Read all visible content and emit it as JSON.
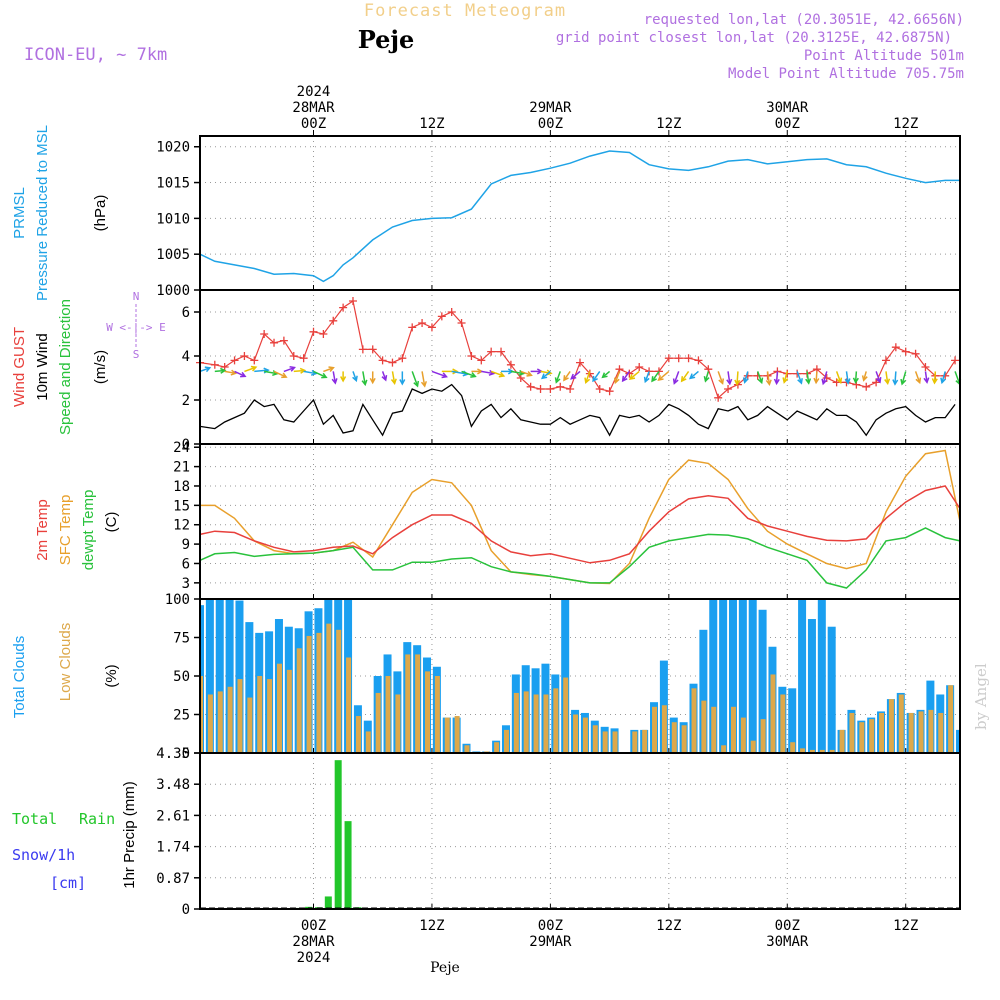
{
  "header": {
    "forecast_title": "Forecast Meteogram",
    "location": "Peje",
    "model": "ICON-EU, ~ 7km",
    "requested": "requested lon,lat (20.3051E, 42.6656N)",
    "grid_point": "grid point closest lon,lat (20.3125E, 42.6875N)",
    "point_altitude": "Point Altitude 501m",
    "model_altitude": "Model Point Altitude 705.75m",
    "footer_location": "Peje",
    "watermark": "by Angel"
  },
  "time_axis": {
    "top_labels": [
      {
        "hour": 0,
        "lines": [
          "2024",
          "28MAR",
          "00Z"
        ]
      },
      {
        "hour": 12,
        "lines": [
          "12Z"
        ]
      },
      {
        "hour": 24,
        "lines": [
          "29MAR",
          "00Z"
        ]
      },
      {
        "hour": 36,
        "lines": [
          "12Z"
        ]
      },
      {
        "hour": 48,
        "lines": [
          "30MAR",
          "00Z"
        ]
      },
      {
        "hour": 60,
        "lines": [
          "12Z"
        ]
      }
    ],
    "bottom_labels": [
      {
        "hour": 0,
        "lines": [
          "00Z",
          "28MAR",
          "2024"
        ]
      },
      {
        "hour": 12,
        "lines": [
          "12Z"
        ]
      },
      {
        "hour": 24,
        "lines": [
          "00Z",
          "29MAR"
        ]
      },
      {
        "hour": 36,
        "lines": [
          "12Z"
        ]
      },
      {
        "hour": 48,
        "lines": [
          "00Z",
          "30MAR"
        ]
      },
      {
        "hour": 60,
        "lines": [
          "12Z"
        ]
      }
    ],
    "x_range_hours": [
      -11.5,
      65.5
    ]
  },
  "panels": {
    "pressure": {
      "ylabel_lines": [
        "PRMSL",
        "Pressure Reduced to MSL"
      ],
      "unit": "(hPa)",
      "ticks": [
        "1000",
        "1005",
        "1010",
        "1015",
        "1020"
      ],
      "color": "#1fa3e6"
    },
    "wind": {
      "ylabel_gust": "Wind GUST",
      "ylabel_wind": "10m Wind",
      "ylabel_dir": "Speed and Direction",
      "unit": "(m/s)",
      "ticks": [
        "0",
        "2",
        "4",
        "6"
      ],
      "compass_n": "N",
      "compass_s": "S",
      "compass_we": "W <-|-> E",
      "gust_color": "#e8403c",
      "speed_color": "#000000",
      "arrow_colors": [
        "#1fa3e6",
        "#29c23c",
        "#e8a02c",
        "#8a2be2",
        "#e8c400"
      ]
    },
    "temperature": {
      "ylabel_2m": "2m Temp",
      "ylabel_sfc": "SFC Temp",
      "ylabel_dew": "dewpt Temp",
      "unit": "(C)",
      "ticks": [
        "3",
        "6",
        "9",
        "12",
        "15",
        "18",
        "21",
        "24"
      ],
      "t2m_color": "#e8403c",
      "sfc_color": "#e8a02c",
      "dew_color": "#29c23c"
    },
    "clouds": {
      "ylabel_total": "Total Clouds",
      "ylabel_low": "Low Clouds",
      "unit": "(%)",
      "ticks": [
        "0",
        "25",
        "50",
        "75",
        "100"
      ],
      "total_color": "#1a9ff0",
      "low_color": "#dda84a"
    },
    "precip": {
      "ylabel_total": "Total",
      "ylabel_rain": "Rain",
      "ylabel_snow": "Snow/1h",
      "ylabel_cm": "[cm]",
      "ylabel_axis": "1hr Precip (mm)",
      "ticks": [
        "0",
        "0.87",
        "1.74",
        "2.61",
        "3.48",
        "4.35"
      ],
      "rain_color": "#22c62a",
      "snow_color": "#3a3af0"
    }
  },
  "chart_data": [
    {
      "type": "line",
      "title": "PRMSL",
      "ylabel": "Pressure Reduced to MSL (hPa)",
      "ylim": [
        1000,
        1021.5
      ],
      "x_hours": [
        -11.5,
        -10,
        -8,
        -6,
        -4,
        -2,
        0,
        1,
        2,
        3,
        4,
        6,
        8,
        10,
        12,
        14,
        16,
        18,
        20,
        22,
        24,
        26,
        28,
        30,
        32,
        34,
        36,
        38,
        40,
        42,
        44,
        46,
        48,
        50,
        52,
        54,
        56,
        58,
        60,
        62,
        64,
        65.5
      ],
      "values": [
        1005,
        1004,
        1003.5,
        1003,
        1002.2,
        1002.3,
        1002,
        1001.2,
        1002,
        1003.5,
        1004.5,
        1007,
        1008.8,
        1009.7,
        1010,
        1010.1,
        1011.3,
        1014.8,
        1016,
        1016.4,
        1017,
        1017.7,
        1018.7,
        1019.4,
        1019.2,
        1017.5,
        1016.9,
        1016.7,
        1017.2,
        1018,
        1018.2,
        1017.6,
        1017.9,
        1018.2,
        1018.3,
        1017.5,
        1017.2,
        1016.3,
        1015.6,
        1015,
        1015.3,
        1015.3
      ]
    },
    {
      "type": "line",
      "title": "Wind",
      "ylabel": "(m/s)",
      "ylim": [
        0,
        7
      ],
      "x_hours": [
        -11.5,
        -10,
        -9,
        -8,
        -7,
        -6,
        -5,
        -4,
        -3,
        -2,
        -1,
        0,
        1,
        2,
        3,
        4,
        5,
        6,
        7,
        8,
        9,
        10,
        11,
        12,
        13,
        14,
        15,
        16,
        17,
        18,
        19,
        20,
        21,
        22,
        23,
        24,
        25,
        26,
        27,
        28,
        29,
        30,
        31,
        32,
        33,
        34,
        35,
        36,
        37,
        38,
        39,
        40,
        41,
        42,
        43,
        44,
        45,
        46,
        47,
        48,
        49,
        50,
        51,
        52,
        53,
        54,
        55,
        56,
        57,
        58,
        59,
        60,
        61,
        62,
        63,
        64,
        65
      ],
      "series": [
        {
          "name": "Wind GUST",
          "values": [
            3.7,
            3.6,
            3.5,
            3.8,
            4.0,
            3.8,
            5.0,
            4.6,
            4.7,
            4.0,
            3.9,
            5.1,
            5.0,
            5.6,
            6.2,
            6.5,
            4.3,
            4.3,
            3.8,
            3.7,
            3.9,
            5.3,
            5.5,
            5.3,
            5.8,
            6.0,
            5.5,
            4.0,
            3.8,
            4.2,
            4.2,
            3.6,
            3.0,
            2.6,
            2.5,
            2.5,
            2.6,
            2.5,
            3.7,
            3.2,
            2.5,
            2.4,
            3.4,
            3.2,
            3.5,
            3.3,
            3.3,
            3.9,
            3.9,
            3.9,
            3.8,
            3.4,
            2.1,
            2.5,
            2.7,
            3.1,
            3.1,
            3.1,
            3.3,
            3.2,
            3.2,
            3.2,
            3.4,
            3.0,
            2.8,
            2.8,
            2.7,
            2.6,
            2.8,
            3.8,
            4.4,
            4.2,
            4.1,
            3.5,
            3.1,
            3.1,
            3.8
          ]
        },
        {
          "name": "10m Wind",
          "values": [
            0.8,
            0.7,
            1.0,
            1.2,
            1.4,
            2.0,
            1.7,
            1.8,
            1.1,
            1.0,
            1.5,
            2.0,
            0.9,
            1.3,
            0.5,
            0.6,
            1.8,
            1.1,
            0.4,
            1.4,
            1.5,
            2.5,
            2.3,
            2.5,
            2.4,
            2.7,
            2.2,
            0.8,
            1.5,
            1.8,
            1.2,
            1.6,
            1.1,
            1.0,
            0.9,
            0.9,
            1.2,
            0.9,
            1.1,
            1.3,
            1.2,
            0.4,
            1.3,
            1.2,
            1.3,
            1.0,
            1.3,
            1.8,
            1.6,
            1.3,
            0.9,
            0.7,
            1.6,
            1.5,
            1.7,
            1.1,
            1.3,
            1.7,
            1.4,
            1.1,
            1.5,
            1.3,
            1.1,
            1.6,
            1.3,
            1.3,
            1.0,
            0.4,
            1.1,
            1.4,
            1.6,
            1.7,
            1.3,
            1.0,
            1.2,
            1.2,
            1.8
          ]
        }
      ],
      "direction_arrows_y": 3.3
    },
    {
      "type": "line",
      "title": "Temperature",
      "ylabel": "(C)",
      "ylim": [
        0.5,
        24.5
      ],
      "x_hours": [
        -11.5,
        -10,
        -8,
        -6,
        -4,
        -2,
        0,
        2,
        4,
        6,
        8,
        10,
        12,
        14,
        16,
        18,
        20,
        22,
        24,
        26,
        28,
        30,
        32,
        34,
        36,
        38,
        40,
        42,
        44,
        46,
        48,
        50,
        52,
        54,
        56,
        58,
        60,
        62,
        64,
        65.5
      ],
      "series": [
        {
          "name": "2m Temp",
          "values": [
            10.5,
            11,
            10.8,
            9.5,
            8.5,
            7.8,
            8,
            8.5,
            8.7,
            7.5,
            10,
            12,
            13.5,
            13.5,
            12.2,
            9.5,
            7.8,
            7.2,
            7.5,
            6.8,
            6.1,
            6.5,
            7.5,
            11,
            14,
            16,
            16.5,
            16.1,
            13,
            11.8,
            11,
            10.2,
            9.6,
            9.5,
            9.8,
            13,
            15.5,
            17.3,
            18,
            14.5
          ]
        },
        {
          "name": "SFC Temp",
          "values": [
            15,
            15,
            13,
            9.5,
            8,
            7.5,
            7.6,
            8,
            9.3,
            7,
            12,
            17,
            19,
            18.5,
            15,
            8,
            4.7,
            4.3,
            4,
            3.5,
            3,
            2.9,
            6,
            13,
            19,
            22,
            21.5,
            19,
            14.5,
            11,
            9,
            7.5,
            6,
            5.2,
            6,
            14,
            19.5,
            23,
            23.5,
            12.5
          ]
        },
        {
          "name": "dewpt Temp",
          "values": [
            6.5,
            7.5,
            7.7,
            7.1,
            7.4,
            7.5,
            7.6,
            8,
            8.5,
            5,
            5,
            6.2,
            6.2,
            6.7,
            6.9,
            5.5,
            4.7,
            4.4,
            4,
            3.5,
            3,
            3.0,
            5.5,
            8.5,
            9.5,
            10,
            10.5,
            10.4,
            9.8,
            8.5,
            7.5,
            6.5,
            3,
            2.2,
            5,
            9.5,
            10,
            11.5,
            10,
            9.5
          ]
        }
      ]
    },
    {
      "type": "bar",
      "title": "Clouds",
      "ylabel": "(%)",
      "ylim": [
        0,
        100
      ],
      "x_hours": [
        -11.5,
        -10.5,
        -9.5,
        -8.5,
        -7.5,
        -6.5,
        -5.5,
        -4.5,
        -3.5,
        -2.5,
        -1.5,
        -0.5,
        0.5,
        1.5,
        2.5,
        3.5,
        4.5,
        5.5,
        6.5,
        7.5,
        8.5,
        9.5,
        10.5,
        11.5,
        12.5,
        13.5,
        14.5,
        15.5,
        16.5,
        17.5,
        18.5,
        19.5,
        20.5,
        21.5,
        22.5,
        23.5,
        24.5,
        25.5,
        26.5,
        27.5,
        28.5,
        29.5,
        30.5,
        31.5,
        32.5,
        33.5,
        34.5,
        35.5,
        36.5,
        37.5,
        38.5,
        39.5,
        40.5,
        41.5,
        42.5,
        43.5,
        44.5,
        45.5,
        46.5,
        47.5,
        48.5,
        49.5,
        50.5,
        51.5,
        52.5,
        53.5,
        54.5,
        55.5,
        56.5,
        57.5,
        58.5,
        59.5,
        60.5,
        61.5,
        62.5,
        63.5,
        64.5,
        65.5
      ],
      "series": [
        {
          "name": "Total Clouds",
          "values": [
            96,
            100,
            100,
            100,
            99,
            85,
            78,
            79,
            87,
            82,
            81,
            92,
            94,
            100,
            100,
            100,
            31,
            21,
            50,
            64,
            53,
            72,
            70,
            62,
            56,
            23,
            23,
            6,
            1,
            1,
            8,
            18,
            51,
            57,
            55,
            58,
            51,
            100,
            28,
            26,
            21,
            17,
            16,
            0,
            15,
            15,
            33,
            60,
            23,
            20,
            45,
            80,
            100,
            100,
            100,
            100,
            100,
            93,
            69,
            43,
            42,
            100,
            87,
            100,
            82,
            15,
            28,
            21,
            23,
            27,
            35,
            39,
            26,
            28,
            47,
            38,
            44,
            15
          ]
        },
        {
          "name": "Low Clouds",
          "values": [
            50,
            38,
            40,
            43,
            48,
            36,
            50,
            48,
            58,
            54,
            68,
            76,
            78,
            84,
            80,
            62,
            24,
            14,
            39,
            50,
            38,
            64,
            64,
            53,
            50,
            23,
            24,
            5,
            0,
            1,
            7,
            15,
            39,
            40,
            38,
            38,
            42,
            49,
            25,
            23,
            18,
            14,
            14,
            0,
            14,
            15,
            30,
            31,
            20,
            18,
            42,
            34,
            30,
            5,
            30,
            23,
            8,
            22,
            51,
            38,
            7,
            3,
            2,
            2,
            2,
            15,
            26,
            20,
            22,
            26,
            35,
            38,
            26,
            27,
            28,
            26,
            44,
            0
          ]
        }
      ]
    },
    {
      "type": "bar",
      "title": "1hr Precip",
      "ylabel": "1hr Precip (mm)",
      "ylim": [
        0,
        4.35
      ],
      "x_hours": [
        -2.5,
        -1.5,
        -0.5,
        0.5,
        1.5,
        2.5,
        3.5,
        4.5
      ],
      "series": [
        {
          "name": "Total Rain",
          "values": [
            0.01,
            0.03,
            0.06,
            0.05,
            0.35,
            4.15,
            2.45,
            0.05
          ]
        },
        {
          "name": "Snow/1h",
          "values": [
            0,
            0,
            0,
            0,
            0,
            0,
            0,
            0
          ]
        }
      ]
    }
  ]
}
